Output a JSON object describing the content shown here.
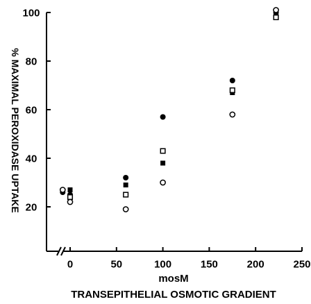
{
  "chart_data": {
    "type": "scatter",
    "title": "",
    "xlabel_unit": "mosM",
    "xlabel": "TRANSEPITHELIAL OSMOTIC GRADIENT",
    "ylabel": "% MAXIMAL PEROXIDASE UPTAKE",
    "xlim": [
      0,
      250
    ],
    "ylim": [
      0,
      100
    ],
    "x_ticks": [
      0,
      50,
      100,
      150,
      200,
      250
    ],
    "y_ticks": [
      20,
      40,
      60,
      80,
      100
    ],
    "grid": false,
    "axis_break": "x",
    "series": [
      {
        "marker": "filled-circle",
        "points": [
          [
            -8,
            26
          ],
          [
            0,
            25
          ],
          [
            60,
            32
          ],
          [
            100,
            57
          ],
          [
            175,
            72
          ],
          [
            222,
            100
          ]
        ]
      },
      {
        "marker": "filled-square",
        "points": [
          [
            0,
            27
          ],
          [
            60,
            29
          ],
          [
            100,
            38
          ],
          [
            175,
            67
          ],
          [
            222,
            99
          ]
        ]
      },
      {
        "marker": "open-square",
        "points": [
          [
            0,
            24
          ],
          [
            60,
            25
          ],
          [
            100,
            43
          ],
          [
            175,
            68
          ],
          [
            222,
            98
          ]
        ]
      },
      {
        "marker": "open-circle",
        "points": [
          [
            -8,
            27
          ],
          [
            0,
            22
          ],
          [
            60,
            19
          ],
          [
            100,
            30
          ],
          [
            175,
            58
          ],
          [
            222,
            101
          ]
        ]
      }
    ]
  }
}
